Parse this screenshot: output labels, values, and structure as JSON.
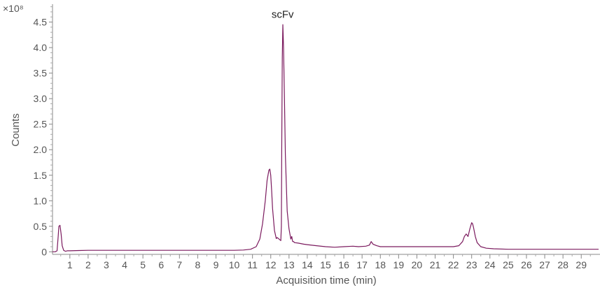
{
  "chart_data": {
    "type": "line",
    "xlabel": "Acquisition time (min)",
    "ylabel": "Counts",
    "y_multiplier_label": "×10⁸",
    "xlim": [
      0.05,
      29.95
    ],
    "ylim": [
      -0.05,
      4.85
    ],
    "x_tick_labels": [
      "1",
      "2",
      "3",
      "4",
      "5",
      "6",
      "7",
      "8",
      "9",
      "10",
      "11",
      "12",
      "13",
      "14",
      "15",
      "16",
      "17",
      "18",
      "19",
      "20",
      "21",
      "22",
      "23",
      "24",
      "25",
      "26",
      "27",
      "28",
      "29"
    ],
    "y_tick_labels": [
      "0",
      "0.5",
      "1.0",
      "1.5",
      "2.0",
      "2.5",
      "3.0",
      "3.5",
      "4.0",
      "4.5"
    ],
    "grid": false,
    "line_color": "#7b1a5e",
    "annotations": [
      {
        "text": "scFv",
        "x": 12.65,
        "y": 4.5
      }
    ],
    "series": [
      {
        "x": [
          0.05,
          0.2,
          0.3,
          0.36,
          0.4,
          0.46,
          0.52,
          0.58,
          0.66,
          0.76,
          0.86,
          1.0,
          1.5,
          2,
          3,
          4,
          5,
          6,
          7,
          8,
          9,
          10,
          10.5,
          10.9,
          11.2,
          11.4,
          11.55,
          11.7,
          11.8,
          11.9,
          11.95,
          12.0,
          12.05,
          12.1,
          12.2,
          12.3,
          12.35,
          12.45,
          12.55,
          12.58,
          12.6,
          12.63,
          12.66,
          12.7,
          12.75,
          12.8,
          12.9,
          13.0,
          13.1,
          13.15,
          13.2,
          13.25,
          13.3,
          13.5,
          13.8,
          14.0,
          14.5,
          15.0,
          15.5,
          16.0,
          16.5,
          16.8,
          17.2,
          17.4,
          17.5,
          17.6,
          17.8,
          18,
          19,
          20,
          21,
          22,
          22.3,
          22.5,
          22.6,
          22.7,
          22.8,
          22.9,
          23.0,
          23.05,
          23.1,
          23.2,
          23.3,
          23.5,
          23.8,
          24.2,
          25,
          26,
          27,
          28,
          29,
          29.95
        ],
        "y": [
          0.0,
          0.0,
          0.02,
          0.3,
          0.5,
          0.52,
          0.35,
          0.12,
          0.03,
          0.01,
          0.02,
          0.02,
          0.025,
          0.03,
          0.03,
          0.03,
          0.03,
          0.03,
          0.03,
          0.03,
          0.03,
          0.03,
          0.035,
          0.05,
          0.1,
          0.25,
          0.55,
          1.0,
          1.4,
          1.6,
          1.62,
          1.5,
          1.2,
          0.85,
          0.42,
          0.26,
          0.28,
          0.25,
          0.22,
          0.5,
          2.0,
          3.8,
          4.45,
          4.0,
          3.0,
          1.9,
          0.8,
          0.45,
          0.25,
          0.3,
          0.2,
          0.2,
          0.18,
          0.17,
          0.15,
          0.14,
          0.12,
          0.1,
          0.09,
          0.1,
          0.11,
          0.1,
          0.11,
          0.13,
          0.2,
          0.15,
          0.12,
          0.1,
          0.1,
          0.1,
          0.1,
          0.1,
          0.12,
          0.2,
          0.3,
          0.35,
          0.3,
          0.45,
          0.57,
          0.55,
          0.48,
          0.3,
          0.18,
          0.1,
          0.07,
          0.06,
          0.05,
          0.05,
          0.05,
          0.05,
          0.05,
          0.05
        ]
      }
    ]
  }
}
